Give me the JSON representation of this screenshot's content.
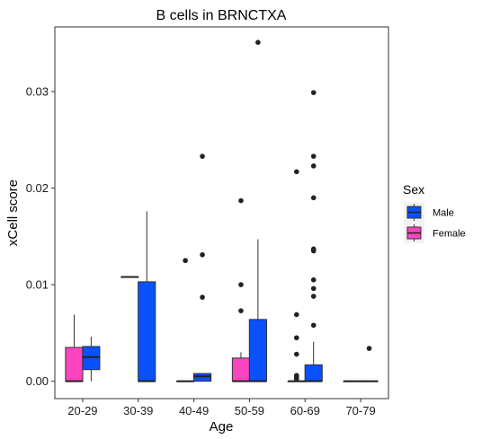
{
  "chart_data": {
    "type": "boxplot",
    "title": "B cells in BRNCTXA",
    "xlabel": "Age",
    "ylabel": "xCell score",
    "categories": [
      "20-29",
      "30-39",
      "40-49",
      "50-59",
      "60-69",
      "70-79"
    ],
    "ylim": [
      -0.0018,
      0.0367
    ],
    "yticks": [
      0.0,
      0.01,
      0.02,
      0.03
    ],
    "ytick_labels": [
      "0.00",
      "0.01",
      "0.02",
      "0.03"
    ],
    "grid": false,
    "legend": {
      "title": "Sex",
      "position": "right",
      "entries": [
        {
          "name": "Male",
          "color": "#0a50fb"
        },
        {
          "name": "Female",
          "color": "#fb44c0"
        }
      ]
    },
    "series": [
      {
        "name": "Female",
        "color": "#fb44c0",
        "boxes": [
          {
            "category": "20-29",
            "min": 0.0,
            "q1": 0.0,
            "median": 0.0,
            "q3": 0.0035,
            "max": 0.0069,
            "outliers": []
          },
          {
            "category": "30-39",
            "min": 0.0108,
            "q1": 0.0108,
            "median": 0.0108,
            "q3": 0.0108,
            "max": 0.0108,
            "outliers": []
          },
          {
            "category": "40-49",
            "min": 0.0,
            "q1": 0.0,
            "median": 0.0,
            "q3": 0.0,
            "max": 0.0,
            "outliers": [
              0.0125
            ]
          },
          {
            "category": "50-59",
            "min": 0.0,
            "q1": 0.0,
            "median": 0.0,
            "q3": 0.0024,
            "max": 0.003,
            "outliers": [
              0.0073,
              0.01,
              0.0187
            ]
          },
          {
            "category": "60-69",
            "min": 0.0,
            "q1": 0.0,
            "median": 0.0,
            "q3": 0.0,
            "max": 0.0,
            "outliers": [
              0.0002,
              0.0004,
              0.0006,
              0.0028,
              0.0045,
              0.0069,
              0.0217
            ]
          },
          {
            "category": "70-79",
            "min": 0.0,
            "q1": 0.0,
            "median": 0.0,
            "q3": 0.0,
            "max": 0.0,
            "outliers": []
          }
        ]
      },
      {
        "name": "Male",
        "color": "#0a50fb",
        "boxes": [
          {
            "category": "20-29",
            "min": 0.0,
            "q1": 0.0012,
            "median": 0.0025,
            "q3": 0.0036,
            "max": 0.0046,
            "outliers": []
          },
          {
            "category": "30-39",
            "min": 0.0,
            "q1": 0.0,
            "median": 0.0,
            "q3": 0.0103,
            "max": 0.0176,
            "outliers": []
          },
          {
            "category": "40-49",
            "min": 0.0,
            "q1": 0.0,
            "median": 0.0005,
            "q3": 0.0008,
            "max": 0.0008,
            "outliers": [
              0.0087,
              0.0131,
              0.0233
            ]
          },
          {
            "category": "50-59",
            "min": 0.0,
            "q1": 0.0,
            "median": 0.0,
            "q3": 0.0064,
            "max": 0.0147,
            "outliers": [
              0.0351
            ]
          },
          {
            "category": "60-69",
            "min": 0.0,
            "q1": 0.0,
            "median": 0.0,
            "q3": 0.0017,
            "max": 0.0041,
            "outliers": [
              0.0058,
              0.0088,
              0.0096,
              0.0105,
              0.0135,
              0.0137,
              0.019,
              0.0223,
              0.0233,
              0.0299
            ]
          },
          {
            "category": "70-79",
            "min": 0.0,
            "q1": 0.0,
            "median": 0.0,
            "q3": 0.0,
            "max": 0.0,
            "outliers": [
              0.0034
            ]
          }
        ]
      }
    ]
  }
}
